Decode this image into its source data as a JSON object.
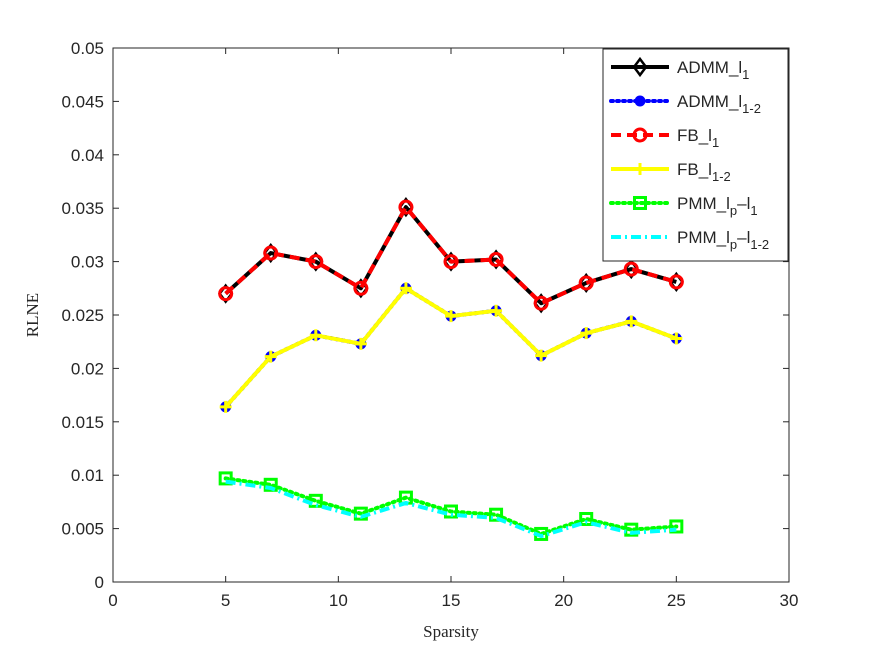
{
  "chart_data": {
    "type": "line",
    "title": "",
    "xlabel": "Sparsity",
    "ylabel": "RLNE",
    "xlim": [
      0,
      30
    ],
    "ylim": [
      0,
      0.05
    ],
    "xticks": [
      0,
      5,
      10,
      15,
      20,
      25,
      30
    ],
    "yticks": [
      0,
      0.005,
      0.01,
      0.015,
      0.02,
      0.025,
      0.03,
      0.035,
      0.04,
      0.045,
      0.05
    ],
    "x": [
      5,
      7,
      9,
      11,
      13,
      15,
      17,
      19,
      21,
      23,
      25
    ],
    "legend_position": "top-right",
    "series": [
      {
        "name": "ADMM_l1",
        "legend_main": "ADMM_l",
        "legend_sub": "1",
        "color": "#000000",
        "line_style": "solid",
        "marker": "diamond",
        "values": [
          0.027,
          0.0308,
          0.03,
          0.0275,
          0.0351,
          0.03,
          0.0302,
          0.0261,
          0.028,
          0.0293,
          0.0281
        ]
      },
      {
        "name": "ADMM_l1-2",
        "legend_main": "ADMM_l",
        "legend_sub": "1-2",
        "color": "#0000ff",
        "line_style": "dotted",
        "marker": "dot",
        "values": [
          0.0164,
          0.0211,
          0.0231,
          0.0223,
          0.0275,
          0.0249,
          0.0254,
          0.0212,
          0.0233,
          0.0244,
          0.0228
        ]
      },
      {
        "name": "FB_l1",
        "legend_main": "FB_l",
        "legend_sub": "1",
        "color": "#ff0000",
        "line_style": "dashed",
        "marker": "circle",
        "values": [
          0.027,
          0.0308,
          0.03,
          0.0275,
          0.0351,
          0.03,
          0.0302,
          0.0261,
          0.028,
          0.0293,
          0.0281
        ]
      },
      {
        "name": "FB_l1-2",
        "legend_main": "FB_l",
        "legend_sub": "1-2",
        "color": "#ffff00",
        "line_style": "solid",
        "marker": "plus",
        "values": [
          0.0164,
          0.0211,
          0.0231,
          0.0223,
          0.0275,
          0.0249,
          0.0254,
          0.0212,
          0.0233,
          0.0244,
          0.0228
        ]
      },
      {
        "name": "PMM_lp-l1",
        "legend_main": "PMM_l",
        "legend_sub": "p",
        "legend_mid": "–l",
        "legend_sub2": "1",
        "color": "#00ff00",
        "line_style": "dotted",
        "marker": "square",
        "values": [
          0.0097,
          0.0091,
          0.0076,
          0.0064,
          0.0079,
          0.0066,
          0.0063,
          0.0045,
          0.0059,
          0.0049,
          0.0052
        ]
      },
      {
        "name": "PMM_lp-l1-2",
        "legend_main": "PMM_l",
        "legend_sub": "p",
        "legend_mid": "–l",
        "legend_sub2": "1-2",
        "color": "#00ffff",
        "line_style": "dashdot",
        "marker": "none",
        "values": [
          0.0094,
          0.0088,
          0.0072,
          0.0061,
          0.0074,
          0.0063,
          0.006,
          0.0043,
          0.0056,
          0.0046,
          0.0049
        ]
      }
    ]
  }
}
